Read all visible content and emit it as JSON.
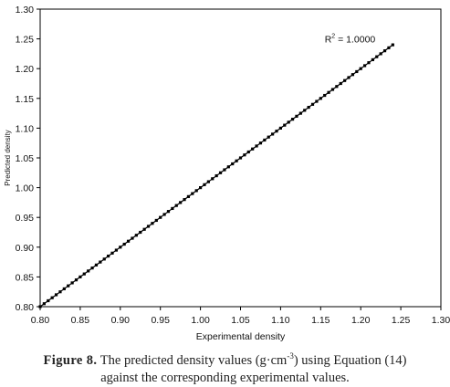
{
  "chart_data": {
    "type": "scatter",
    "title": "",
    "xlabel": "Experimental density",
    "ylabel": "Predicted density",
    "xlim": [
      0.8,
      1.3
    ],
    "ylim": [
      0.8,
      1.3
    ],
    "x_ticks": [
      "0.80",
      "0.85",
      "0.90",
      "0.95",
      "1.00",
      "1.05",
      "1.10",
      "1.15",
      "1.20",
      "1.25",
      "1.30"
    ],
    "y_ticks": [
      "0.80",
      "0.85",
      "0.90",
      "0.95",
      "1.00",
      "1.05",
      "1.10",
      "1.15",
      "1.20",
      "1.25",
      "1.30"
    ],
    "annotation": {
      "prefix": "R",
      "superscript": "2",
      "suffix": " = 1.0000"
    },
    "series": [
      {
        "x": [
          0.8,
          0.805,
          0.81,
          0.815,
          0.82,
          0.825,
          0.83,
          0.835,
          0.84,
          0.845,
          0.85,
          0.855,
          0.86,
          0.865,
          0.87,
          0.875,
          0.88,
          0.885,
          0.89,
          0.895,
          0.9,
          0.905,
          0.91,
          0.915,
          0.92,
          0.925,
          0.93,
          0.935,
          0.94,
          0.945,
          0.95,
          0.955,
          0.96,
          0.965,
          0.97,
          0.975,
          0.98,
          0.985,
          0.99,
          0.995,
          1.0,
          1.005,
          1.01,
          1.015,
          1.02,
          1.025,
          1.03,
          1.035,
          1.04,
          1.045,
          1.05,
          1.055,
          1.06,
          1.065,
          1.07,
          1.075,
          1.08,
          1.085,
          1.09,
          1.095,
          1.1,
          1.105,
          1.11,
          1.115,
          1.12,
          1.125,
          1.13,
          1.135,
          1.14,
          1.145,
          1.15,
          1.155,
          1.16,
          1.165,
          1.17,
          1.175,
          1.18,
          1.185,
          1.19,
          1.195,
          1.2,
          1.205,
          1.21,
          1.215,
          1.22,
          1.225,
          1.23,
          1.235,
          1.24
        ],
        "y": [
          0.8,
          0.805,
          0.81,
          0.815,
          0.82,
          0.825,
          0.83,
          0.835,
          0.84,
          0.845,
          0.85,
          0.855,
          0.86,
          0.865,
          0.87,
          0.875,
          0.88,
          0.885,
          0.89,
          0.895,
          0.9,
          0.905,
          0.91,
          0.915,
          0.92,
          0.925,
          0.93,
          0.935,
          0.94,
          0.945,
          0.95,
          0.955,
          0.96,
          0.965,
          0.97,
          0.975,
          0.98,
          0.985,
          0.99,
          0.995,
          1.0,
          1.005,
          1.01,
          1.015,
          1.02,
          1.025,
          1.03,
          1.035,
          1.04,
          1.045,
          1.05,
          1.055,
          1.06,
          1.065,
          1.07,
          1.075,
          1.08,
          1.085,
          1.09,
          1.095,
          1.1,
          1.105,
          1.11,
          1.115,
          1.12,
          1.125,
          1.13,
          1.135,
          1.14,
          1.145,
          1.15,
          1.155,
          1.16,
          1.165,
          1.17,
          1.175,
          1.18,
          1.185,
          1.19,
          1.195,
          1.2,
          1.205,
          1.21,
          1.215,
          1.22,
          1.225,
          1.23,
          1.235,
          1.24
        ]
      }
    ],
    "grid": false,
    "legend": "none"
  },
  "caption": {
    "label": "Figure 8.",
    "text_part1": " The predicted density values (g·cm",
    "superscript": "-3",
    "text_part2": ") using Equation (14)",
    "line2": "against the corresponding experimental values."
  }
}
